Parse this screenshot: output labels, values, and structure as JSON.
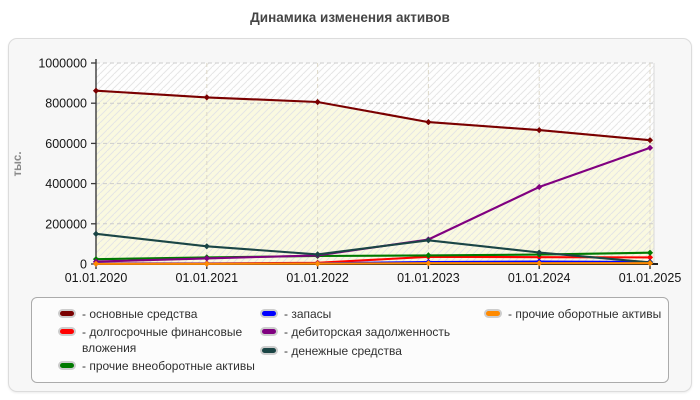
{
  "title": "Динамика изменения активов",
  "chart_data": {
    "type": "line",
    "title": "Динамика изменения активов",
    "ylabel": "тыс.",
    "xlabel": "",
    "categories": [
      "01.01.2020",
      "01.01.2021",
      "01.01.2022",
      "01.01.2023",
      "01.01.2024",
      "01.01.2025"
    ],
    "ylim": [
      0,
      1000000
    ],
    "yticks": [
      0,
      200000,
      400000,
      600000,
      800000,
      1000000
    ],
    "grid": true,
    "legend_position": "bottom",
    "series": [
      {
        "name": "основные средства",
        "color": "#7a0000",
        "values": [
          862000,
          829000,
          806000,
          706000,
          666000,
          616000
        ],
        "area_fill": "#f9f7d8"
      },
      {
        "name": "долгосрочные финансовые вложения",
        "color": "#ff0000",
        "values": [
          3000,
          3000,
          6000,
          36000,
          34000,
          33000
        ]
      },
      {
        "name": "прочие внеоборотные активы",
        "color": "#007a00",
        "values": [
          24000,
          33000,
          40000,
          43000,
          47000,
          56000
        ]
      },
      {
        "name": "запасы",
        "color": "#0000ff",
        "values": [
          2000,
          2000,
          3000,
          10000,
          12000,
          10000
        ]
      },
      {
        "name": "дебиторская задолженность",
        "color": "#800080",
        "values": [
          12000,
          28000,
          43000,
          122000,
          383000,
          578000
        ]
      },
      {
        "name": "денежные средства",
        "color": "#1a4545",
        "values": [
          150000,
          88000,
          48000,
          118000,
          57000,
          8000
        ]
      },
      {
        "name": "прочие оборотные активы",
        "color": "#ff8a00",
        "values": [
          1000,
          1000,
          2000,
          4000,
          4000,
          4000
        ]
      }
    ]
  },
  "legend": {
    "prefix": "- ",
    "columns": [
      [
        0,
        1,
        2
      ],
      [
        3,
        4,
        5
      ],
      [
        6
      ]
    ]
  },
  "style_colors": {
    "panel_bg": "#f7f7f7",
    "plot_bg": "#fefefe",
    "hatch_line": "#e5e5e5",
    "area_fill": "#f9f7d8",
    "h_grid": "#cccccc",
    "v_grid": "#ddd8c8",
    "axis": "#222222",
    "tick_text": "#151515",
    "ylabel_text": "#8a8a8a"
  }
}
